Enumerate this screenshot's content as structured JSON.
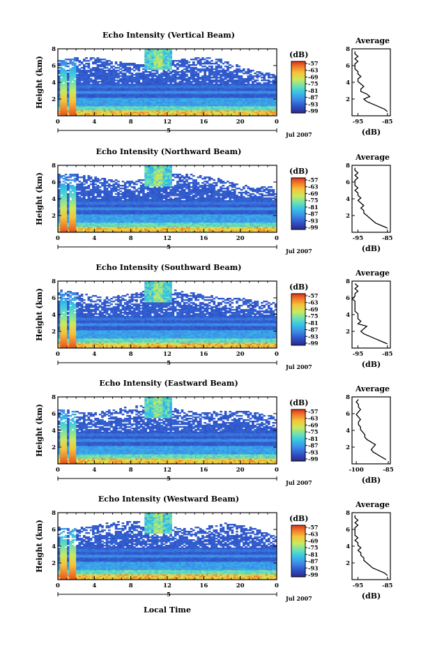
{
  "figure": {
    "xlabel": "Local Time",
    "date_label": "Jul 2007",
    "day_label": "5",
    "ylabel": "Height (km)",
    "colorbar_unit": "(dB)",
    "avg_title": "Average",
    "avg_xlabel": "(dB)"
  },
  "chart_data": [
    {
      "type": "heatmap",
      "title": "Echo Intensity (Vertical Beam)",
      "xlabel": "Local Time",
      "ylabel": "Height (km)",
      "x_range": [
        0,
        24
      ],
      "y_range": [
        0,
        8
      ],
      "x_ticks": [
        "0",
        "4",
        "8",
        "12",
        "16",
        "20",
        "0"
      ],
      "y_ticks": [
        "2",
        "4",
        "6",
        "8"
      ],
      "colorbar_ticks": [
        "-57",
        "-63",
        "-69",
        "-75",
        "-81",
        "-87",
        "-93",
        "-99"
      ],
      "colorbar_range": [
        -99,
        -57
      ],
      "average_profile": {
        "title": "Average",
        "xlabel": "(dB)",
        "x_ticks": [
          "-95",
          "-85"
        ],
        "xlim": [
          -97,
          -84
        ],
        "y_range": [
          0,
          8
        ],
        "height_km": [
          0.5,
          0.8,
          1.1,
          1.4,
          1.7,
          2.0,
          2.3,
          2.6,
          2.9,
          3.2,
          3.5,
          3.8,
          4.1,
          4.4,
          4.7,
          5.0,
          5.3,
          5.6,
          5.9,
          6.2,
          6.5,
          6.8,
          7.1,
          7.4,
          7.7
        ],
        "db": [
          -85,
          -86,
          -88,
          -90,
          -92,
          -93,
          -91,
          -92,
          -94,
          -94,
          -93,
          -94,
          -95,
          -95,
          -94,
          -95,
          -95,
          -96,
          -96,
          -96,
          -95,
          -96,
          -95,
          -96,
          -96
        ]
      }
    },
    {
      "type": "heatmap",
      "title": "Echo Intensity (Northward Beam)",
      "xlabel": "Local Time",
      "ylabel": "Height (km)",
      "x_range": [
        0,
        24
      ],
      "y_range": [
        0,
        8
      ],
      "x_ticks": [
        "0",
        "4",
        "8",
        "12",
        "16",
        "20",
        "0"
      ],
      "y_ticks": [
        "2",
        "4",
        "6",
        "8"
      ],
      "colorbar_ticks": [
        "-57",
        "-63",
        "-69",
        "-75",
        "-81",
        "-87",
        "-93",
        "-99"
      ],
      "colorbar_range": [
        -99,
        -57
      ],
      "average_profile": {
        "title": "Average",
        "xlabel": "(dB)",
        "x_ticks": [
          "-95",
          "-85"
        ],
        "xlim": [
          -97,
          -84
        ],
        "y_range": [
          0,
          8
        ],
        "height_km": [
          0.5,
          0.8,
          1.1,
          1.4,
          1.7,
          2.0,
          2.3,
          2.6,
          2.9,
          3.2,
          3.5,
          3.8,
          4.1,
          4.4,
          4.7,
          5.0,
          5.3,
          5.6,
          5.9,
          6.2,
          6.5,
          6.8,
          7.1,
          7.4,
          7.7
        ],
        "db": [
          -85,
          -87,
          -89,
          -90,
          -91,
          -92,
          -93,
          -93,
          -94,
          -93,
          -94,
          -95,
          -94,
          -95,
          -95,
          -96,
          -95,
          -96,
          -96,
          -96,
          -95,
          -96,
          -95,
          -96,
          -96
        ]
      }
    },
    {
      "type": "heatmap",
      "title": "Echo Intensity (Southward Beam)",
      "xlabel": "Local Time",
      "ylabel": "Height (km)",
      "x_range": [
        0,
        24
      ],
      "y_range": [
        0,
        8
      ],
      "x_ticks": [
        "0",
        "4",
        "8",
        "12",
        "16",
        "20",
        "0"
      ],
      "y_ticks": [
        "2",
        "4",
        "6",
        "8"
      ],
      "colorbar_ticks": [
        "-57",
        "-63",
        "-69",
        "-75",
        "-81",
        "-87",
        "-93",
        "-99"
      ],
      "colorbar_range": [
        -99,
        -57
      ],
      "average_profile": {
        "title": "Average",
        "xlabel": "(dB)",
        "x_ticks": [
          "-95",
          "-85"
        ],
        "xlim": [
          -97,
          -84
        ],
        "y_range": [
          0,
          8
        ],
        "height_km": [
          0.5,
          0.8,
          1.1,
          1.4,
          1.7,
          2.0,
          2.3,
          2.6,
          2.9,
          3.2,
          3.5,
          3.8,
          4.1,
          4.4,
          4.7,
          5.0,
          5.3,
          5.6,
          5.9,
          6.2,
          6.5,
          6.8,
          7.1,
          7.4,
          7.7
        ],
        "db": [
          -85,
          -87,
          -89,
          -91,
          -93,
          -94,
          -93,
          -92,
          -95,
          -94,
          -95,
          -95,
          -95,
          -96,
          -96,
          -96,
          -96,
          -96,
          -97,
          -96,
          -96,
          -95,
          -96,
          -95,
          -96
        ]
      }
    },
    {
      "type": "heatmap",
      "title": "Echo Intensity (Eastward Beam)",
      "xlabel": "Local Time",
      "ylabel": "Height (km)",
      "x_range": [
        0,
        24
      ],
      "y_range": [
        0,
        8
      ],
      "x_ticks": [
        "0",
        "4",
        "8",
        "12",
        "16",
        "20",
        "0"
      ],
      "y_ticks": [
        "2",
        "4",
        "6",
        "8"
      ],
      "colorbar_ticks": [
        "-57",
        "-63",
        "-69",
        "-75",
        "-81",
        "-87",
        "-93",
        "-99"
      ],
      "colorbar_range": [
        -99,
        -57
      ],
      "average_profile": {
        "title": "Average",
        "xlabel": "(dB)",
        "x_ticks": [
          "-100",
          "-85"
        ],
        "xlim": [
          -102,
          -84
        ],
        "y_range": [
          0,
          8
        ],
        "height_km": [
          0.5,
          0.8,
          1.1,
          1.4,
          1.7,
          2.0,
          2.3,
          2.6,
          2.9,
          3.2,
          3.5,
          3.8,
          4.1,
          4.4,
          4.7,
          5.0,
          5.3,
          5.6,
          5.9,
          6.2,
          6.5,
          6.8,
          7.1,
          7.4,
          7.7
        ],
        "db": [
          -86,
          -88,
          -90,
          -92,
          -93,
          -92,
          -91,
          -93,
          -95,
          -96,
          -96,
          -97,
          -98,
          -98,
          -99,
          -99,
          -98,
          -99,
          -100,
          -99,
          -98,
          -99,
          -99,
          -100,
          -99
        ]
      }
    },
    {
      "type": "heatmap",
      "title": "Echo Intensity (Westward Beam)",
      "xlabel": "Local Time",
      "ylabel": "Height (km)",
      "x_range": [
        0,
        24
      ],
      "y_range": [
        0,
        8
      ],
      "x_ticks": [
        "0",
        "4",
        "8",
        "12",
        "16",
        "20",
        "0"
      ],
      "y_ticks": [
        "2",
        "4",
        "6",
        "8"
      ],
      "colorbar_ticks": [
        "-57",
        "-63",
        "-69",
        "-75",
        "-81",
        "-87",
        "-93",
        "-99"
      ],
      "colorbar_range": [
        -99,
        -57
      ],
      "average_profile": {
        "title": "Average",
        "xlabel": "(dB)",
        "x_ticks": [
          "-95",
          "-85"
        ],
        "xlim": [
          -97,
          -84
        ],
        "y_range": [
          0,
          8
        ],
        "height_km": [
          0.5,
          0.8,
          1.1,
          1.4,
          1.7,
          2.0,
          2.3,
          2.6,
          2.9,
          3.2,
          3.5,
          3.8,
          4.1,
          4.4,
          4.7,
          5.0,
          5.3,
          5.6,
          5.9,
          6.2,
          6.5,
          6.8,
          7.1,
          7.4,
          7.7
        ],
        "db": [
          -85,
          -86,
          -88,
          -90,
          -91,
          -92,
          -93,
          -93,
          -94,
          -94,
          -95,
          -94,
          -95,
          -95,
          -96,
          -95,
          -96,
          -96,
          -96,
          -96,
          -95,
          -96,
          -95,
          -96,
          -96
        ]
      }
    }
  ]
}
